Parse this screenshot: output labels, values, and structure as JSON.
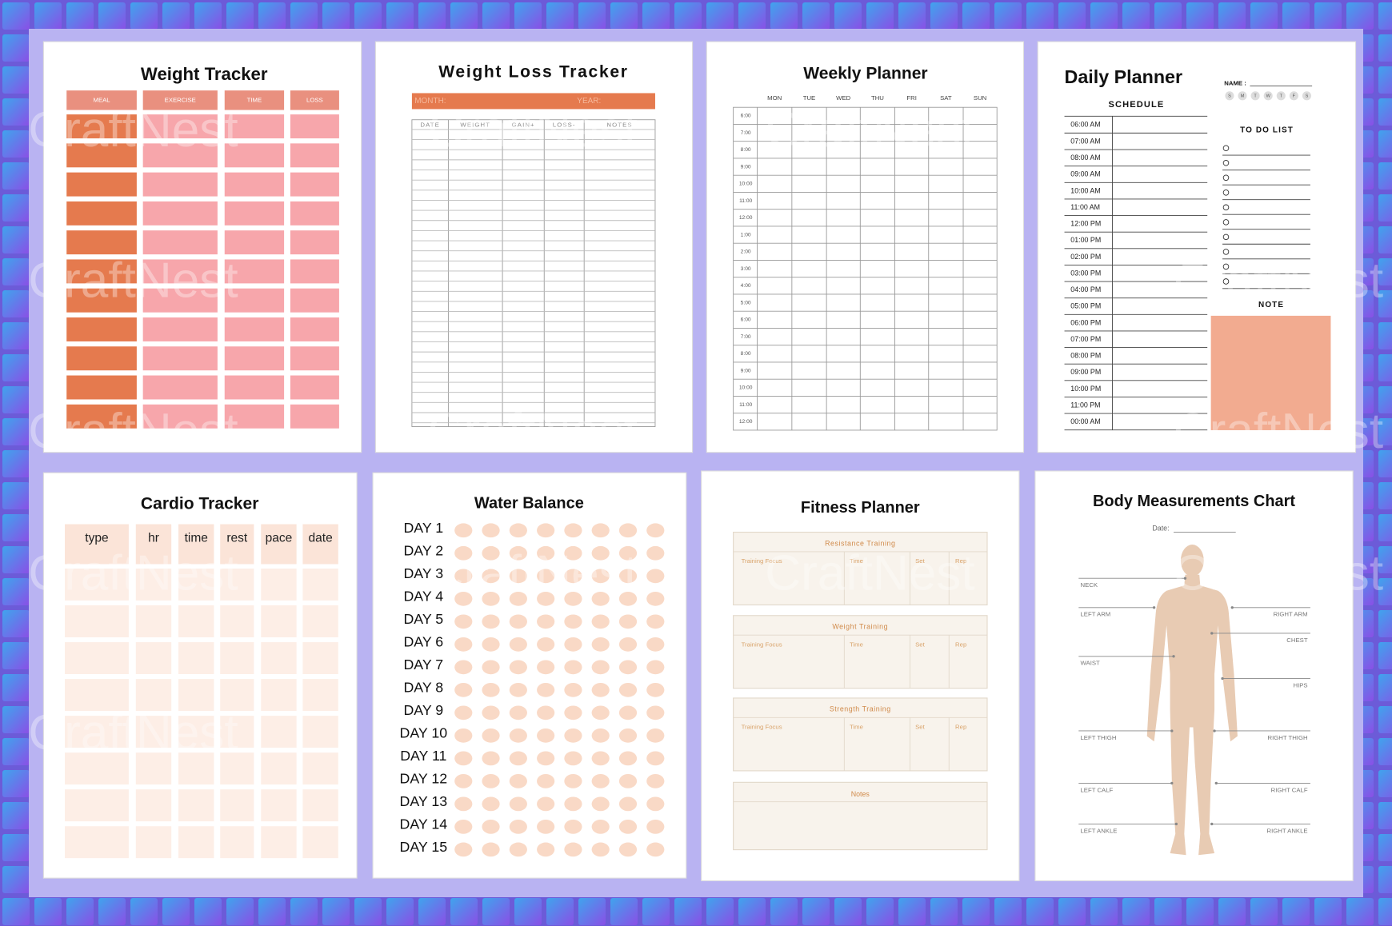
{
  "watermark": "CraftNest",
  "weight_tracker": {
    "title": "Weight Tracker",
    "columns": [
      "MEAL",
      "EXERCISE",
      "TIME",
      "LOSS"
    ]
  },
  "weight_loss_tracker": {
    "title": "Weight Loss Tracker",
    "month": "MONTH:",
    "year": "YEAR:",
    "columns": [
      "DATE",
      "WEIGHT",
      "GAIN+",
      "LOSS-",
      "NOTES"
    ]
  },
  "weekly_planner": {
    "title": "Weekly Planner",
    "days": [
      "MON",
      "TUE",
      "WED",
      "THU",
      "FRI",
      "SAT",
      "SUN"
    ],
    "times": [
      "6:00",
      "7:00",
      "8:00",
      "9:00",
      "10:00",
      "11:00",
      "12:00",
      "1:00",
      "2:00",
      "3:00",
      "4:00",
      "5:00",
      "6:00",
      "7:00",
      "8:00",
      "9:00",
      "10:00",
      "11:00",
      "12:00"
    ]
  },
  "daily_planner": {
    "title": "Daily Planner",
    "name": "NAME :",
    "weekdays": [
      "S",
      "M",
      "T",
      "W",
      "T",
      "F",
      "S"
    ],
    "schedule": "SCHEDULE",
    "times": [
      "06:00 AM",
      "07:00 AM",
      "08:00 AM",
      "09:00 AM",
      "10:00 AM",
      "11:00 AM",
      "12:00 PM",
      "01:00 PM",
      "02:00 PM",
      "03:00 PM",
      "04:00 PM",
      "05:00 PM",
      "06:00 PM",
      "07:00 PM",
      "08:00 PM",
      "09:00 PM",
      "10:00 PM",
      "11:00 PM",
      "00:00 AM"
    ],
    "todo": "TO DO LIST",
    "note": "NOTE"
  },
  "cardio_tracker": {
    "title": "Cardio Tracker",
    "columns": [
      "type",
      "hr",
      "time",
      "rest",
      "pace",
      "date"
    ]
  },
  "water_balance": {
    "title": "Water Balance",
    "days": [
      "DAY 1",
      "DAY 2",
      "DAY 3",
      "DAY 4",
      "DAY 5",
      "DAY 6",
      "DAY 7",
      "DAY 8",
      "DAY 9",
      "DAY 10",
      "DAY 11",
      "DAY 12",
      "DAY 13",
      "DAY 14",
      "DAY 15"
    ]
  },
  "fitness_planner": {
    "title": "Fitness Planner",
    "sections": [
      {
        "name": "Resistance Training",
        "columns": [
          "Training Focus",
          "Time",
          "Set",
          "Rep"
        ]
      },
      {
        "name": "Weight Training",
        "columns": [
          "Training Focus",
          "Time",
          "Set",
          "Rep"
        ]
      },
      {
        "name": "Strength Training",
        "columns": [
          "Training Focus",
          "Time",
          "Set",
          "Rep"
        ]
      }
    ],
    "notes": "Notes"
  },
  "body_measurements": {
    "title": "Body Measurements Chart",
    "date": "Date:",
    "left": [
      "NECK",
      "LEFT ARM",
      "WAIST",
      "LEFT THIGH",
      "LEFT CALF",
      "LEFT ANKLE"
    ],
    "right": [
      "RIGHT ARM",
      "CHEST",
      "HIPS",
      "RIGHT THIGH",
      "RIGHT CALF",
      "RIGHT ANKLE"
    ]
  }
}
